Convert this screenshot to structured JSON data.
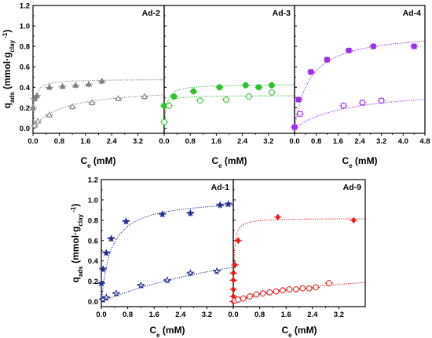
{
  "chart_data": {
    "type": "scatter",
    "ylabel": {
      "main": "q",
      "sub": "ads",
      "unit_open": " (mmol·g",
      "unit_sub": "clay",
      "unit_sup": "-1",
      "unit_close": ")"
    },
    "xlabel": {
      "main": "C",
      "sub": "e",
      "unit": " (mM)"
    },
    "panels": [
      {
        "title": "Ad-2",
        "xlim": [
          0,
          4.0
        ],
        "ylim": [
          -0.05,
          1.2
        ],
        "xticks": [
          "0.0",
          "0.8",
          "1.6",
          "2.4",
          "3.2"
        ],
        "yticks": [
          "0.0",
          "0.2",
          "0.4",
          "0.6",
          "0.8",
          "1.0",
          "1.2"
        ],
        "color": "#808080",
        "series": [
          {
            "marker": "triangle",
            "filled": true,
            "x": [
              0.0,
              0.05,
              0.12,
              0.5,
              0.9,
              1.3,
              1.7,
              2.1
            ],
            "y": [
              0.2,
              0.29,
              0.32,
              0.4,
              0.41,
              0.42,
              0.43,
              0.46
            ],
            "fit": {
              "qmax": 0.48,
              "K": 20
            }
          },
          {
            "marker": "triangle",
            "filled": false,
            "x": [
              0.05,
              0.15,
              0.5,
              1.2,
              1.8,
              2.6,
              3.4
            ],
            "y": [
              0.03,
              0.07,
              0.13,
              0.21,
              0.25,
              0.29,
              0.31
            ],
            "fit": {
              "qmax": 0.4,
              "K": 1.1
            }
          }
        ]
      },
      {
        "title": "Ad-3",
        "xlim": [
          0,
          4.0
        ],
        "ylim": [
          -0.05,
          1.2
        ],
        "xticks": [
          "0.0",
          "0.8",
          "1.6",
          "2.4",
          "3.2"
        ],
        "yticks": [],
        "color": "#33c133",
        "series": [
          {
            "marker": "circle",
            "filled": true,
            "x": [
              0.0,
              0.3,
              0.9,
              1.7,
              2.5,
              2.9,
              3.3
            ],
            "y": [
              0.22,
              0.31,
              0.36,
              0.4,
              0.42,
              0.4,
              0.42
            ],
            "fit": {
              "qmax": 0.43,
              "K": 15
            }
          },
          {
            "marker": "circle",
            "filled": false,
            "x": [
              0.0,
              0.15,
              1.1,
              1.9,
              2.6,
              3.3
            ],
            "y": [
              0.06,
              0.22,
              0.27,
              0.28,
              0.31,
              0.35
            ],
            "fit": {
              "qmax": 0.32,
              "K": 25
            }
          }
        ]
      },
      {
        "title": "Ad-4",
        "xlim": [
          0,
          4.8
        ],
        "ylim": [
          -0.05,
          1.2
        ],
        "xticks": [
          "0.0",
          "0.8",
          "1.6",
          "2.4",
          "3.2",
          "4.0",
          "4.8"
        ],
        "yticks": [],
        "color": "#9b30e8",
        "series": [
          {
            "marker": "square",
            "filled": true,
            "x": [
              0.0,
              0.15,
              0.6,
              1.2,
              2.0,
              2.9,
              4.4
            ],
            "y": [
              0.01,
              0.28,
              0.55,
              0.67,
              0.76,
              0.8,
              0.8
            ],
            "fit": {
              "qmax": 0.95,
              "K": 1.8
            }
          },
          {
            "marker": "square",
            "filled": false,
            "x": [
              0.2,
              1.8,
              2.5,
              3.2
            ],
            "y": [
              0.14,
              0.22,
              0.25,
              0.27
            ],
            "fit": {
              "qmax": 0.4,
              "K": 0.5
            }
          }
        ]
      },
      {
        "title": "Ad-1",
        "xlim": [
          0,
          4.0
        ],
        "ylim": [
          -0.05,
          1.2
        ],
        "xticks": [
          "0.0",
          "0.8",
          "1.6",
          "2.4",
          "3.2"
        ],
        "yticks": [
          "0.0",
          "0.2",
          "0.4",
          "0.6",
          "0.8",
          "1.0",
          "1.2"
        ],
        "color": "#1f2d8a",
        "series": [
          {
            "marker": "star",
            "filled": true,
            "x": [
              0.0,
              0.05,
              0.15,
              0.3,
              0.75,
              1.85,
              2.7,
              3.6,
              3.85
            ],
            "y": [
              0.18,
              0.32,
              0.48,
              0.62,
              0.79,
              0.86,
              0.87,
              0.95,
              0.96
            ],
            "fit": {
              "qmax": 1.02,
              "K": 3.3
            }
          },
          {
            "marker": "star",
            "filled": false,
            "x": [
              0.05,
              0.15,
              0.45,
              1.2,
              2.0,
              2.7,
              3.5
            ],
            "y": [
              0.02,
              0.04,
              0.08,
              0.16,
              0.21,
              0.28,
              0.3
            ],
            "fit": {
              "qmax": 0.9,
              "K": 0.15
            }
          }
        ]
      },
      {
        "title": "Ad-9",
        "xlim": [
          0,
          4.0
        ],
        "ylim": [
          -0.05,
          1.2
        ],
        "xticks": [
          "0.0",
          "0.8",
          "1.6",
          "2.4",
          "3.2"
        ],
        "yticks": [],
        "color": "#ee1a1a",
        "series": [
          {
            "marker": "diamond",
            "filled": true,
            "x": [
              0.0,
              0.0,
              0.0,
              0.0,
              0.0,
              0.05,
              0.15,
              1.35,
              3.65
            ],
            "y": [
              0.0,
              0.05,
              0.12,
              0.21,
              0.28,
              0.36,
              0.6,
              0.83,
              0.8
            ],
            "fit": {
              "qmax": 0.82,
              "K": 40
            }
          },
          {
            "marker": "circle",
            "filled": false,
            "x": [
              0.05,
              0.15,
              0.3,
              0.5,
              0.7,
              0.9,
              1.1,
              1.3,
              1.5,
              1.7,
              1.9,
              2.1,
              2.3,
              2.5,
              2.9
            ],
            "y": [
              0.01,
              0.02,
              0.03,
              0.05,
              0.07,
              0.08,
              0.09,
              0.1,
              0.11,
              0.12,
              0.12,
              0.13,
              0.13,
              0.14,
              0.18
            ],
            "fit": {
              "qmax": 0.32,
              "K": 0.35
            }
          }
        ]
      }
    ]
  }
}
